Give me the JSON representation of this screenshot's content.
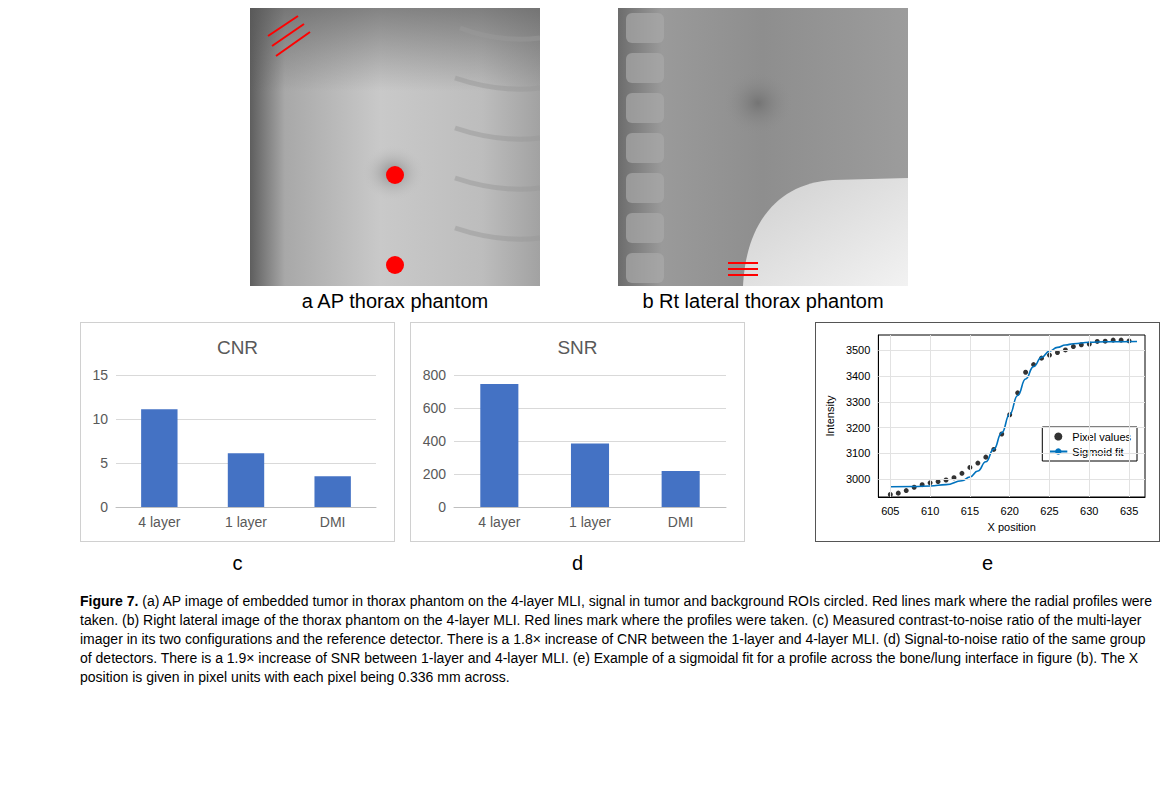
{
  "images": [
    {
      "caption": "a AP thorax phantom"
    },
    {
      "caption": "b Rt lateral thorax phantom"
    }
  ],
  "chart_data": [
    {
      "type": "bar",
      "letter": "c",
      "title": "CNR",
      "categories": [
        "4 layer",
        "1 layer",
        "DMI"
      ],
      "values": [
        11.1,
        6.1,
        3.5
      ],
      "color": "#4472c4",
      "ylim": [
        0,
        15
      ],
      "yticks": [
        0,
        5,
        10,
        15
      ],
      "grid": true
    },
    {
      "type": "bar",
      "letter": "d",
      "title": "SNR",
      "categories": [
        "4 layer",
        "1 layer",
        "DMI"
      ],
      "values": [
        745,
        385,
        218
      ],
      "color": "#4472c4",
      "ylim": [
        0,
        800
      ],
      "yticks": [
        0,
        200,
        400,
        600,
        800
      ],
      "grid": true
    },
    {
      "type": "scatter",
      "letter": "e",
      "xlabel": "X position",
      "ylabel": "Intensity",
      "xlim": [
        603.5,
        637
      ],
      "xticks": [
        605,
        610,
        615,
        620,
        625,
        630,
        635
      ],
      "ylim": [
        2930,
        3560
      ],
      "yticks": [
        3000,
        3100,
        3200,
        3300,
        3400,
        3500
      ],
      "grid": true,
      "legend": "right",
      "series": [
        {
          "name": "Pixel values",
          "type": "scatter",
          "marker": "circle",
          "color": "#000000",
          "x": [
            605,
            606,
            607,
            608,
            609,
            610,
            611,
            612,
            613,
            614,
            615,
            616,
            617,
            618,
            619,
            620,
            621,
            622,
            623,
            624,
            625,
            626,
            627,
            628,
            629,
            630,
            631,
            632,
            633,
            634,
            635
          ],
          "values": [
            2940,
            2945,
            2955,
            2968,
            2978,
            2985,
            2990,
            2996,
            3005,
            3022,
            3045,
            3062,
            3085,
            3115,
            3175,
            3250,
            3335,
            3415,
            3445,
            3470,
            3482,
            3492,
            3502,
            3515,
            3522,
            3525,
            3535,
            3536,
            3540,
            3540,
            3537
          ]
        },
        {
          "name": "Sigmoid fit",
          "type": "line",
          "line_style": "solid",
          "color": "#0072bd",
          "x": [
            605,
            608,
            610,
            612,
            614,
            615,
            616,
            617,
            618,
            619,
            620,
            621,
            622,
            623,
            624,
            625,
            626,
            627,
            628,
            630,
            632,
            636
          ],
          "values": [
            2970,
            2971,
            2973,
            2978,
            2993,
            3008,
            3031,
            3067,
            3116,
            3180,
            3252,
            3325,
            3389,
            3437,
            3473,
            3497,
            3512,
            3521,
            3526,
            3532,
            3534,
            3535
          ]
        }
      ]
    }
  ],
  "caption": {
    "label": "Figure 7.",
    "text": "(a) AP image of embedded tumor in thorax phantom on the 4-layer MLI, signal in tumor and background ROIs circled. Red lines mark where the radial profiles were taken. (b) Right lateral image of the thorax phantom on the 4-layer MLI. Red lines mark where the profiles were taken. (c) Measured contrast-to-noise ratio of the multi-layer imager in its two configurations and the reference detector. There is a 1.8× increase of CNR between the 1-layer and 4-layer MLI. (d) Signal-to-noise ratio of the same group of detectors. There is a 1.9× increase of SNR between 1-layer and 4-layer MLI. (e) Example of a sigmoidal fit for a profile across the bone/lung interface in figure (b). The X position is given in pixel units with each pixel being 0.336 mm across."
  }
}
